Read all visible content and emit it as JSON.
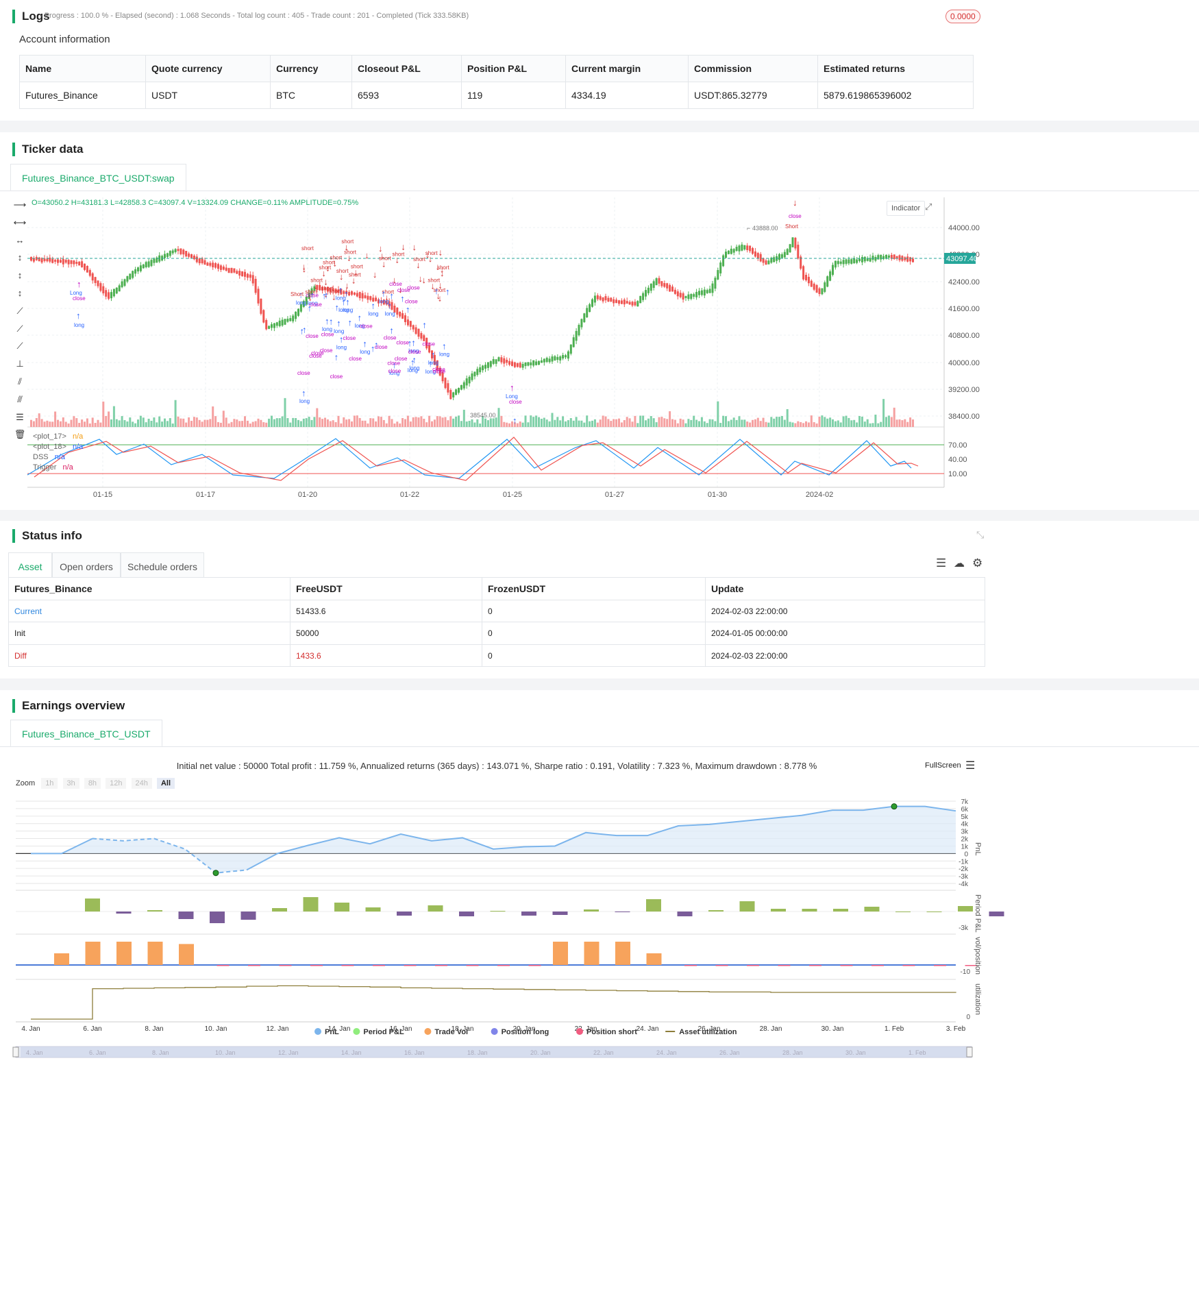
{
  "logs": {
    "title": "Logs",
    "progress_text": "- Progress : 100.0 % - Elapsed (second) : 1.068   Seconds - Total log count : 405 - Trade count : 201 - Completed (Tick 333.58KB)",
    "badge": "0.0000"
  },
  "account": {
    "title": "Account information",
    "headers": [
      "Name",
      "Quote currency",
      "Currency",
      "Closeout P&L",
      "Position P&L",
      "Current margin",
      "Commission",
      "Estimated returns"
    ],
    "row": [
      "Futures_Binance",
      "USDT",
      "BTC",
      "6593",
      "119",
      "4334.19",
      "USDT:865.32779",
      "5879.619865396002"
    ]
  },
  "ticker": {
    "title": "Ticker data",
    "tab": "Futures_Binance_BTC_USDT:swap",
    "ohlc": "O=43050.2 H=43181.3 L=42858.3 C=43097.4 V=13324.09 CHANGE=0.11% AMPLITUDE=0.75%",
    "indicator_btn": "Indicator",
    "price_ticks": [
      "44000.00",
      "43200.00",
      "42400.00",
      "41600.00",
      "40800.00",
      "40000.00",
      "39200.00",
      "38400.00"
    ],
    "current_price": "43097.40",
    "high_label": "43888.00",
    "low_label": "38545.00",
    "osc_ticks": [
      "70.00",
      "40.00",
      "10.00"
    ],
    "x_ticks": [
      "01-15",
      "01-17",
      "01-20",
      "01-22",
      "01-25",
      "01-27",
      "01-30",
      "2024-02"
    ],
    "legend": [
      {
        "name": "<plot_17>",
        "val": "n/a",
        "color": "#f39c12"
      },
      {
        "name": "<plot_18>",
        "val": "n/a",
        "color": "#2962ff"
      },
      {
        "name": "DSS",
        "val": "n/a",
        "color": "#2962ff"
      },
      {
        "name": "Trigger",
        "val": "n/a",
        "color": "#d81b60"
      }
    ],
    "markers": {
      "long": "long",
      "short": "short",
      "close": "close",
      "Long": "Long",
      "Short": "Short"
    }
  },
  "status": {
    "title": "Status info",
    "tabs": [
      "Asset",
      "Open orders",
      "Schedule orders"
    ],
    "headers": [
      "Futures_Binance",
      "FreeUSDT",
      "FrozenUSDT",
      "Update"
    ],
    "rows": [
      [
        "Current",
        "51433.6",
        "0",
        "2024-02-03 22:00:00"
      ],
      [
        "Init",
        "50000",
        "0",
        "2024-01-05 00:00:00"
      ],
      [
        "Diff",
        "1433.6",
        "0",
        "2024-02-03 22:00:00"
      ]
    ]
  },
  "earnings": {
    "title": "Earnings overview",
    "tab": "Futures_Binance_BTC_USDT",
    "summary": "Initial net value : 50000 Total profit : 11.759 %, Annualized returns (365 days) : 143.071 %, Sharpe ratio : 0.191, Volatility : 7.323 %, Maximum drawdown : 8.778 %",
    "fullscreen": "FullScreen",
    "zoom_label": "Zoom",
    "zoom": [
      "1h",
      "3h",
      "8h",
      "12h",
      "24h",
      "All"
    ],
    "pnl_ticks": [
      "7k",
      "6k",
      "5k",
      "4k",
      "3k",
      "2k",
      "1k",
      "0",
      "-1k",
      "-2k",
      "-3k",
      "-4k"
    ],
    "axis_titles": [
      "PnL",
      "Period P&L",
      "vol/position",
      "utilization"
    ],
    "period_tick": "-3k",
    "vol_tick": "-10",
    "util_tick": "0",
    "x_ticks": [
      "4. Jan",
      "6. Jan",
      "8. Jan",
      "10. Jan",
      "12. Jan",
      "14. Jan",
      "16. Jan",
      "18. Jan",
      "20. Jan",
      "22. Jan",
      "24. Jan",
      "26. Jan",
      "28. Jan",
      "30. Jan",
      "1. Feb",
      "3. Feb"
    ],
    "nav_ticks": [
      "4. Jan",
      "6. Jan",
      "8. Jan",
      "10. Jan",
      "12. Jan",
      "14. Jan",
      "16. Jan",
      "18. Jan",
      "20. Jan",
      "22. Jan",
      "24. Jan",
      "26. Jan",
      "28. Jan",
      "30. Jan",
      "1. Feb"
    ],
    "legend": [
      {
        "name": "PnL",
        "color": "#7cb5ec"
      },
      {
        "name": "Period P&L",
        "color": "#90ed7d"
      },
      {
        "name": "Trade Vol",
        "color": "#f7a35c"
      },
      {
        "name": "Position long",
        "color": "#8085e9"
      },
      {
        "name": "Position short",
        "color": "#f15c80"
      },
      {
        "name": "Asset utilization",
        "color": "#8d7d3a"
      }
    ]
  },
  "chart_data": [
    {
      "type": "line",
      "title": "",
      "ylabel": "PnL",
      "ylim": [
        -4000,
        7000
      ],
      "x": [
        "4. Jan",
        "5. Jan",
        "6. Jan",
        "7. Jan",
        "8. Jan",
        "9. Jan",
        "10. Jan",
        "11. Jan",
        "12. Jan",
        "13. Jan",
        "14. Jan",
        "15. Jan",
        "16. Jan",
        "17. Jan",
        "18. Jan",
        "19. Jan",
        "20. Jan",
        "21. Jan",
        "22. Jan",
        "23. Jan",
        "24. Jan",
        "25. Jan",
        "26. Jan",
        "27. Jan",
        "28. Jan",
        "29. Jan",
        "30. Jan",
        "31. Jan",
        "1. Feb",
        "2. Feb",
        "3. Feb"
      ],
      "values": [
        0,
        0,
        2000,
        1700,
        2000,
        600,
        -2600,
        -2200,
        0,
        1100,
        2100,
        1300,
        2600,
        1700,
        2100,
        600,
        900,
        1000,
        2800,
        2400,
        2400,
        3700,
        3900,
        4300,
        4700,
        5100,
        5800,
        5800,
        6300,
        6300,
        5700
      ]
    },
    {
      "type": "bar",
      "ylabel": "Period P&L",
      "values": [
        1900,
        -300,
        200,
        -1100,
        -1700,
        -1200,
        500,
        2100,
        1300,
        600,
        -600,
        900,
        -700,
        100,
        -600,
        -500,
        300,
        -100,
        1800,
        -700,
        200,
        1500,
        400,
        400,
        400,
        700,
        0,
        0,
        800,
        -700
      ]
    },
    {
      "type": "bar",
      "ylabel": "vol/position",
      "values": [
        10,
        20,
        20,
        20,
        18,
        0,
        0,
        0,
        0,
        0,
        0,
        0,
        0,
        0,
        0,
        0,
        20,
        20,
        20,
        10,
        0,
        0,
        0,
        0,
        0,
        0,
        0,
        0,
        0,
        0
      ]
    },
    {
      "type": "line",
      "ylabel": "utilization",
      "values": [
        0,
        0,
        0.74,
        0.75,
        0.76,
        0.77,
        0.78,
        0.8,
        0.81,
        0.8,
        0.79,
        0.78,
        0.76,
        0.75,
        0.74,
        0.73,
        0.72,
        0.71,
        0.7,
        0.69,
        0.68,
        0.67,
        0.66,
        0.66,
        0.65,
        0.65,
        0.65,
        0.65,
        0.65,
        0.65,
        0.66
      ]
    }
  ]
}
